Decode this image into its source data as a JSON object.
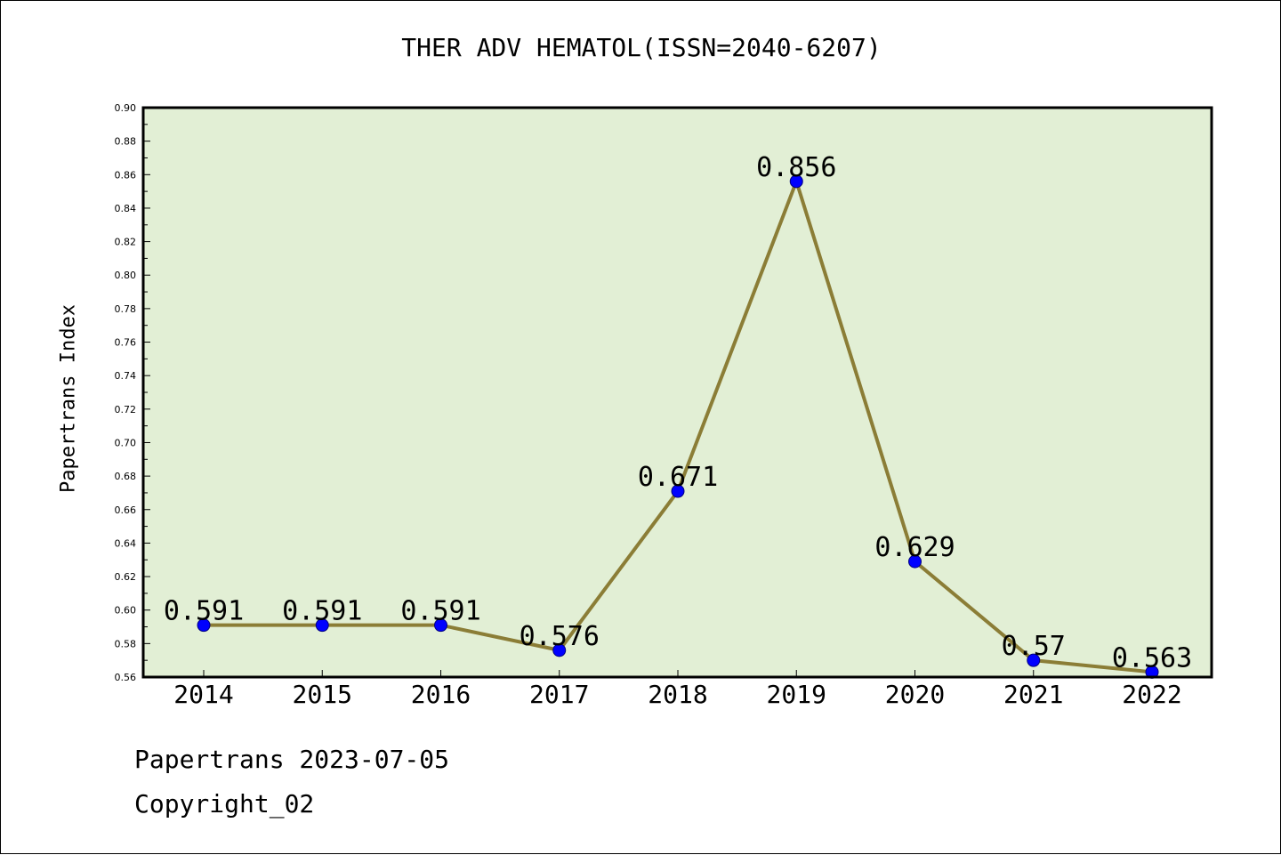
{
  "footer": {
    "line1": "Papertrans 2023-07-05",
    "line2": "Copyright_02"
  },
  "chart_data": {
    "type": "line",
    "title": "THER ADV HEMATOL(ISSN=2040-6207)",
    "xlabel": "",
    "ylabel": "Papertrans Index",
    "categories": [
      "2014",
      "2015",
      "2016",
      "2017",
      "2018",
      "2019",
      "2020",
      "2021",
      "2022"
    ],
    "series": [
      {
        "values": [
          0.591,
          0.591,
          0.591,
          0.576,
          0.671,
          0.856,
          0.629,
          0.57,
          0.563
        ],
        "data_labels": [
          "0.591",
          "0.591",
          "0.591",
          "0.576",
          "0.671",
          "0.856",
          "0.629",
          "0.57",
          "0.563"
        ]
      }
    ],
    "ylim": [
      0.56,
      0.9
    ],
    "y_ticks": [
      "0.56",
      "0.58",
      "0.60",
      "0.62",
      "0.64",
      "0.66",
      "0.68",
      "0.70",
      "0.72",
      "0.74",
      "0.76",
      "0.78",
      "0.80",
      "0.82",
      "0.84",
      "0.86",
      "0.88",
      "0.90"
    ],
    "grid": false,
    "legend": "none",
    "colors": {
      "plot_background": "#e2efd5",
      "line": "#8b7d36",
      "marker": "#0000ff",
      "axis": "#000000"
    }
  }
}
